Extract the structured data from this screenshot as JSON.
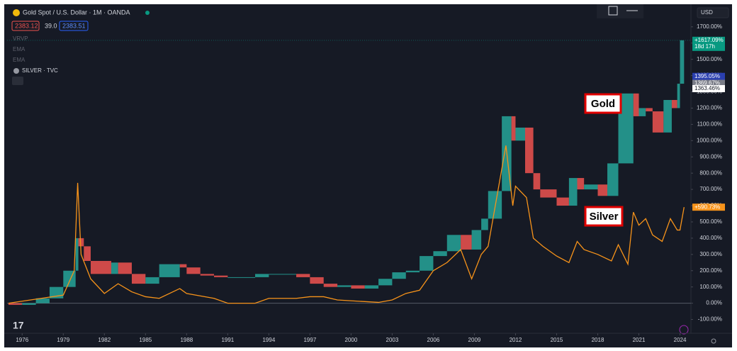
{
  "chart_data": {
    "type": "candle_line",
    "title": "Gold Spot / U.S. Dollar · 1M · OANDA",
    "ohlc_header": [
      "2383.12",
      "39.0",
      "2383.51"
    ],
    "indicators": [
      "VRVP",
      "EMA",
      "EMA",
      "SILVER · TVC"
    ],
    "currency": "USD",
    "annotations": [
      "Gold",
      "Silver"
    ],
    "xlim": [
      1974.9,
      2024.8
    ],
    "xticks": [
      1976,
      1979,
      1982,
      1985,
      1988,
      1991,
      1994,
      1997,
      2000,
      2003,
      2006,
      2009,
      2012,
      2015,
      2018,
      2021,
      2024
    ],
    "ylim": [
      -150,
      1830
    ],
    "yticks": [
      {
        "value": -100,
        "label": "-100.00%"
      },
      {
        "value": 0,
        "label": "0.00%"
      },
      {
        "value": 100,
        "label": "100.00%"
      },
      {
        "value": 200,
        "label": "200.00%"
      },
      {
        "value": 300,
        "label": "300.00%"
      },
      {
        "value": 400,
        "label": "400.00%"
      },
      {
        "value": 500,
        "label": "500.00%"
      },
      {
        "value": 600,
        "label": "600.00%"
      },
      {
        "value": 700,
        "label": "700.00%"
      },
      {
        "value": 800,
        "label": "800.00%"
      },
      {
        "value": 900,
        "label": "900.00%"
      },
      {
        "value": 1000,
        "label": "1000.00%"
      },
      {
        "value": 1100,
        "label": "1100.00%"
      },
      {
        "value": 1200,
        "label": "1200.00%"
      },
      {
        "value": 1300,
        "label": "1300.00%"
      },
      {
        "value": 1400,
        "label": "1400.00%"
      },
      {
        "value": 1500,
        "label": "1500.00%"
      },
      {
        "value": 1600,
        "label": "1600.00%"
      },
      {
        "value": 1700,
        "label": "1700.00%"
      }
    ],
    "series": [
      {
        "name": "Gold",
        "up_color": "#26a69a",
        "down_color": "#ef5350",
        "x": [
          1975,
          1976,
          1977,
          1978,
          1979,
          1979.9,
          1980.1,
          1980.5,
          1981,
          1982.5,
          1983,
          1984,
          1985,
          1986,
          1987.5,
          1988,
          1989,
          1990,
          1991,
          1993,
          1994,
          1996,
          1997,
          1998,
          1999,
          2000,
          2001,
          2002,
          2003,
          2004,
          2005,
          2006,
          2007,
          2008,
          2008.8,
          2009.5,
          2010,
          2011,
          2011.7,
          2012,
          2012.7,
          2013.3,
          2013.8,
          2015,
          2015.9,
          2016.5,
          2017,
          2018,
          2018.7,
          2019.5,
          2020.6,
          2021,
          2021.5,
          2022,
          2022.8,
          2023.4,
          2023.8,
          2024,
          2024.3
        ],
        "values": [
          0,
          -10,
          0,
          30,
          100,
          200,
          400,
          350,
          260,
          180,
          250,
          180,
          120,
          160,
          240,
          220,
          180,
          170,
          160,
          160,
          180,
          180,
          160,
          120,
          100,
          110,
          90,
          110,
          150,
          190,
          200,
          290,
          320,
          420,
          330,
          450,
          520,
          690,
          1150,
          1000,
          1080,
          800,
          700,
          650,
          600,
          770,
          700,
          730,
          660,
          860,
          1290,
          1150,
          1200,
          1180,
          1050,
          1250,
          1200,
          1350,
          1617.09
        ]
      },
      {
        "name": "Silver",
        "color": "#f7931a",
        "x": [
          1975,
          1979,
          1979.8,
          1980.05,
          1980.3,
          1981,
          1982,
          1983,
          1984,
          1985,
          1986,
          1987.5,
          1988,
          1990,
          1991,
          1993,
          1994,
          1996,
          1997,
          1998,
          1999,
          2001,
          2002,
          2003,
          2004,
          2005,
          2006,
          2007,
          2008,
          2008.8,
          2009.5,
          2010,
          2011.3,
          2011.8,
          2012,
          2012.8,
          2013.3,
          2014,
          2015,
          2015.9,
          2016.5,
          2017,
          2018,
          2019,
          2019.5,
          2020.2,
          2020.6,
          2021,
          2021.5,
          2022,
          2022.7,
          2023.3,
          2023.8,
          2024,
          2024.3
        ],
        "values": [
          0,
          50,
          200,
          740,
          300,
          150,
          60,
          120,
          70,
          40,
          30,
          90,
          60,
          30,
          0,
          0,
          30,
          30,
          40,
          40,
          20,
          10,
          5,
          20,
          60,
          80,
          200,
          250,
          330,
          150,
          300,
          350,
          970,
          600,
          720,
          650,
          400,
          350,
          290,
          250,
          380,
          330,
          300,
          260,
          360,
          240,
          560,
          480,
          520,
          420,
          380,
          520,
          450,
          450,
          590.73
        ]
      }
    ],
    "axis_badges": [
      {
        "value": 1617.09,
        "label": "+1617.09%",
        "color": "#089981",
        "text_color": "#ffffff"
      },
      {
        "value": 1395.05,
        "label": "1395.05%",
        "color": "#2a3fb0",
        "text_color": "#ffffff"
      },
      {
        "value": 1369.67,
        "label": "1369.67%",
        "color": "#787b86",
        "text_color": "#ffffff"
      },
      {
        "value": 1363.46,
        "label": "1363.46%",
        "color": "#ffffff",
        "text_color": "#131722"
      },
      {
        "value": 590.73,
        "label": "+590.73%",
        "color": "#f7931a",
        "text_color": "#ffffff"
      }
    ],
    "countdown": "18d 17h"
  }
}
